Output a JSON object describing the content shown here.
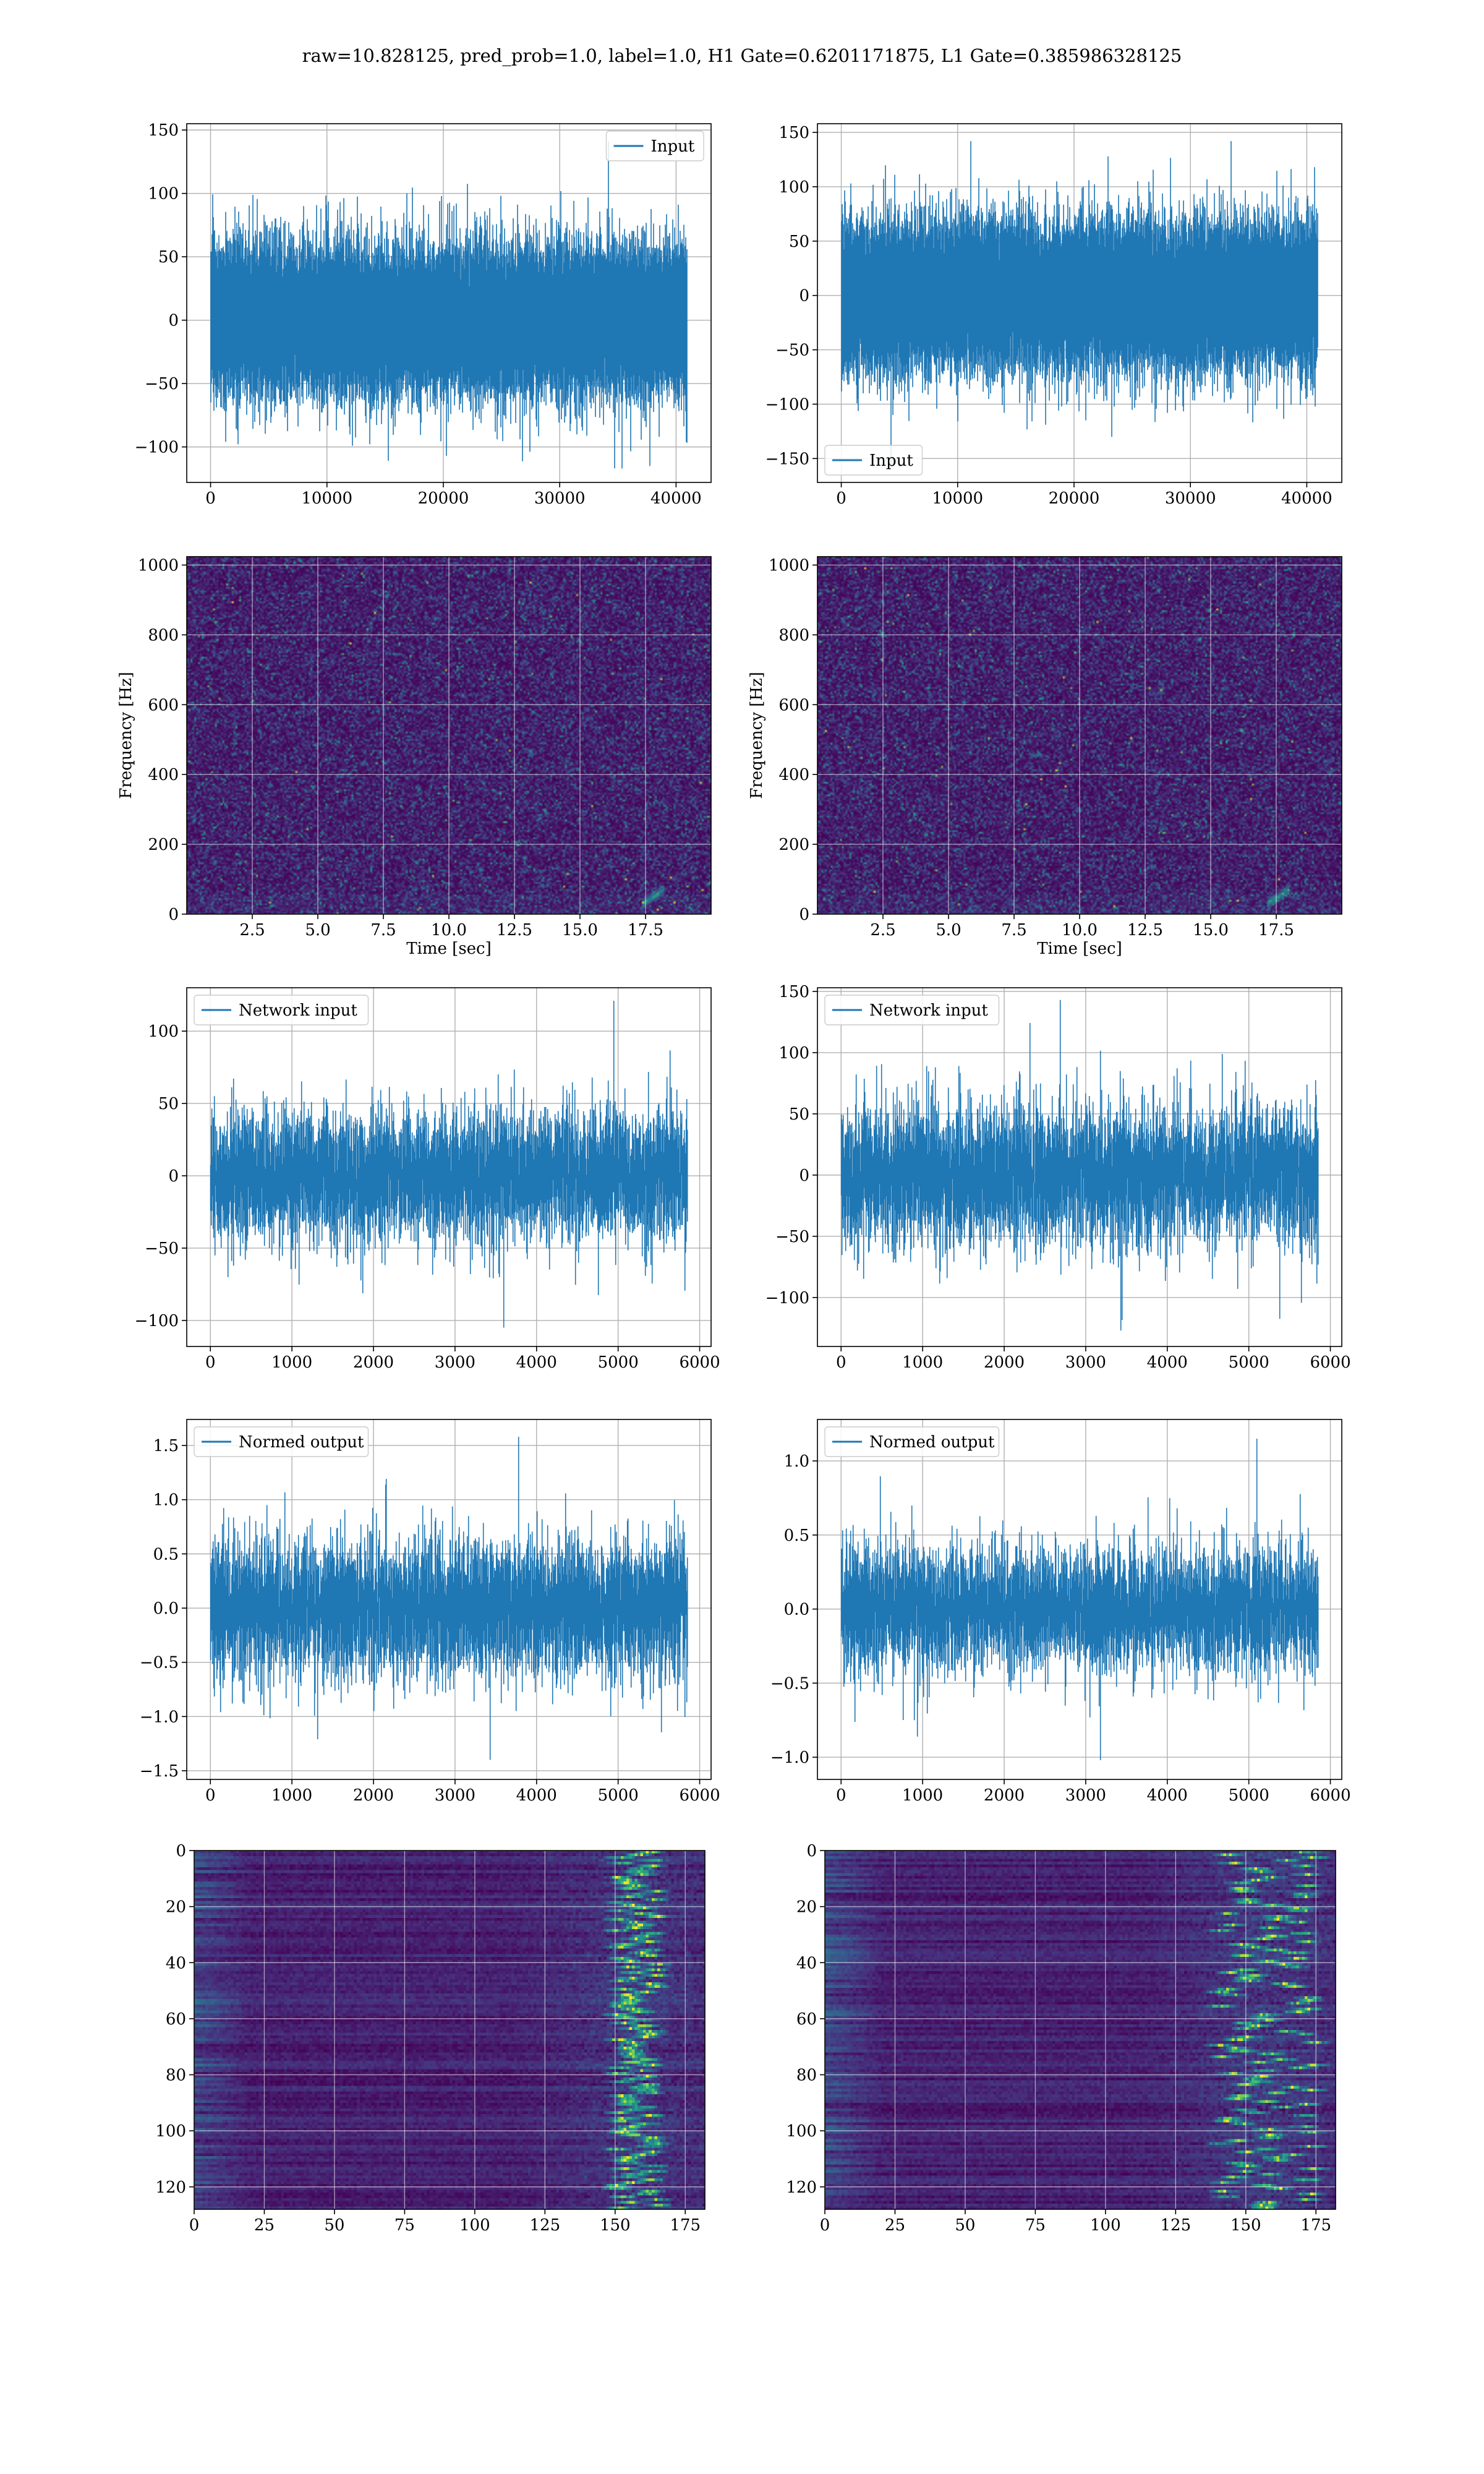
{
  "figure": {
    "suptitle": "raw=10.828125, pred_prob=1.0, label=1.0, H1 Gate=0.6201171875, L1 Gate=0.385986328125"
  },
  "colors": {
    "line": "#1f77b4",
    "grid": "#b0b0b0",
    "viridis": [
      "#440154",
      "#472c7a",
      "#3b528b",
      "#2c728e",
      "#21918c",
      "#28ae80",
      "#5ec962",
      "#addc30",
      "#fde725"
    ]
  },
  "chart_data": [
    {
      "id": "h1-input",
      "type": "line",
      "series": [
        {
          "name": "Input",
          "n_samples": 40960,
          "amplitude_std": 26,
          "peak_max": 141,
          "peak_min": -117
        }
      ],
      "xlim": [
        -2048,
        43008
      ],
      "ylim": [
        -128,
        155
      ],
      "xticks": [
        0,
        10000,
        20000,
        30000,
        40000
      ],
      "xticklabels": [
        "0",
        "10000",
        "20000",
        "30000",
        "40000"
      ],
      "yticks": [
        -100,
        -50,
        0,
        50,
        100,
        150
      ],
      "yticklabels": [
        "−100",
        "−50",
        "0",
        "50",
        "100",
        "150"
      ],
      "legend": "upper right",
      "grid": true,
      "xlabel": "",
      "ylabel": ""
    },
    {
      "id": "l1-input",
      "type": "line",
      "series": [
        {
          "name": "Input",
          "n_samples": 40960,
          "amplitude_std": 30,
          "peak_max": 142,
          "peak_min": -158
        }
      ],
      "xlim": [
        -2048,
        43008
      ],
      "ylim": [
        -172,
        158
      ],
      "xticks": [
        0,
        10000,
        20000,
        30000,
        40000
      ],
      "xticklabels": [
        "0",
        "10000",
        "20000",
        "30000",
        "40000"
      ],
      "yticks": [
        -150,
        -100,
        -50,
        0,
        50,
        100,
        150
      ],
      "yticklabels": [
        "−150",
        "−100",
        "−50",
        "0",
        "50",
        "100",
        "150"
      ],
      "legend": "lower left",
      "grid": true,
      "xlabel": "",
      "ylabel": ""
    },
    {
      "id": "h1-spectrogram",
      "type": "heatmap",
      "xlim": [
        0,
        20
      ],
      "ylim": [
        0,
        1024
      ],
      "xticks": [
        2.5,
        5.0,
        7.5,
        10.0,
        12.5,
        15.0,
        17.5
      ],
      "xticklabels": [
        "2.5",
        "5.0",
        "7.5",
        "10.0",
        "12.5",
        "15.0",
        "17.5"
      ],
      "yticks": [
        0,
        200,
        400,
        600,
        800,
        1000
      ],
      "yticklabels": [
        "0",
        "200",
        "400",
        "600",
        "800",
        "1000"
      ],
      "xlabel": "Time [sec]",
      "ylabel": "Frequency [Hz]",
      "colormap": "viridis",
      "grid": true,
      "chirp": {
        "t_end": 18.1,
        "f_range": [
          30,
          70
        ]
      }
    },
    {
      "id": "l1-spectrogram",
      "type": "heatmap",
      "xlim": [
        0,
        20
      ],
      "ylim": [
        0,
        1024
      ],
      "xticks": [
        2.5,
        5.0,
        7.5,
        10.0,
        12.5,
        15.0,
        17.5
      ],
      "xticklabels": [
        "2.5",
        "5.0",
        "7.5",
        "10.0",
        "12.5",
        "15.0",
        "17.5"
      ],
      "yticks": [
        0,
        200,
        400,
        600,
        800,
        1000
      ],
      "yticklabels": [
        "0",
        "200",
        "400",
        "600",
        "800",
        "1000"
      ],
      "xlabel": "Time [sec]",
      "ylabel": "Frequency [Hz]",
      "colormap": "viridis",
      "grid": true,
      "chirp": {
        "t_end": 17.9,
        "f_range": [
          30,
          70
        ]
      }
    },
    {
      "id": "h1-network-input",
      "type": "line",
      "series": [
        {
          "name": "Network input",
          "n_samples": 5850,
          "amplitude_std": 22,
          "peak_max": 121,
          "peak_min": -105
        }
      ],
      "xlim": [
        -290,
        6140
      ],
      "ylim": [
        -118,
        130
      ],
      "xticks": [
        0,
        1000,
        2000,
        3000,
        4000,
        5000,
        6000
      ],
      "xticklabels": [
        "0",
        "1000",
        "2000",
        "3000",
        "4000",
        "5000",
        "6000"
      ],
      "yticks": [
        -100,
        -50,
        0,
        50,
        100
      ],
      "yticklabels": [
        "−100",
        "−50",
        "0",
        "50",
        "100"
      ],
      "legend": "upper left",
      "grid": true,
      "xlabel": "",
      "ylabel": ""
    },
    {
      "id": "l1-network-input",
      "type": "line",
      "series": [
        {
          "name": "Network input",
          "n_samples": 5850,
          "amplitude_std": 27,
          "peak_max": 143,
          "peak_min": -127
        }
      ],
      "xlim": [
        -290,
        6140
      ],
      "ylim": [
        -140,
        153
      ],
      "xticks": [
        0,
        1000,
        2000,
        3000,
        4000,
        5000,
        6000
      ],
      "xticklabels": [
        "0",
        "1000",
        "2000",
        "3000",
        "4000",
        "5000",
        "6000"
      ],
      "yticks": [
        -100,
        -50,
        0,
        50,
        100,
        150
      ],
      "yticklabels": [
        "−100",
        "−50",
        "0",
        "50",
        "100",
        "150"
      ],
      "legend": "upper left",
      "grid": true,
      "xlabel": "",
      "ylabel": ""
    },
    {
      "id": "h1-normed-output",
      "type": "line",
      "series": [
        {
          "name": "Normed output",
          "n_samples": 5850,
          "amplitude_std": 0.31,
          "peak_max": 1.58,
          "peak_min": -1.4
        }
      ],
      "xlim": [
        -290,
        6140
      ],
      "ylim": [
        -1.58,
        1.74
      ],
      "xticks": [
        0,
        1000,
        2000,
        3000,
        4000,
        5000,
        6000
      ],
      "xticklabels": [
        "0",
        "1000",
        "2000",
        "3000",
        "4000",
        "5000",
        "6000"
      ],
      "yticks": [
        -1.5,
        -1.0,
        -0.5,
        0.0,
        0.5,
        1.0,
        1.5
      ],
      "yticklabels": [
        "−1.5",
        "−1.0",
        "−0.5",
        "0.0",
        "0.5",
        "1.0",
        "1.5"
      ],
      "legend": "upper left",
      "grid": true,
      "xlabel": "",
      "ylabel": ""
    },
    {
      "id": "l1-normed-output",
      "type": "line",
      "series": [
        {
          "name": "Normed output",
          "n_samples": 5850,
          "amplitude_std": 0.2,
          "peak_max": 1.15,
          "peak_min": -1.02
        }
      ],
      "xlim": [
        -290,
        6140
      ],
      "ylim": [
        -1.15,
        1.28
      ],
      "xticks": [
        0,
        1000,
        2000,
        3000,
        4000,
        5000,
        6000
      ],
      "xticklabels": [
        "0",
        "1000",
        "2000",
        "3000",
        "4000",
        "5000",
        "6000"
      ],
      "yticks": [
        -1.0,
        -0.5,
        0.0,
        0.5,
        1.0
      ],
      "yticklabels": [
        "−1.0",
        "−0.5",
        "0.0",
        "0.5",
        "1.0"
      ],
      "legend": "upper left",
      "grid": true,
      "xlabel": "",
      "ylabel": ""
    },
    {
      "id": "h1-features",
      "type": "heatmap",
      "n_rows": 128,
      "n_cols": 182,
      "xlim": [
        0,
        182
      ],
      "ylim": [
        128,
        0
      ],
      "xticks": [
        0,
        25,
        50,
        75,
        100,
        125,
        150,
        175
      ],
      "xticklabels": [
        "0",
        "25",
        "50",
        "75",
        "100",
        "125",
        "150",
        "175"
      ],
      "yticks": [
        0,
        20,
        40,
        60,
        80,
        100,
        120
      ],
      "yticklabels": [
        "0",
        "20",
        "40",
        "60",
        "80",
        "100",
        "120"
      ],
      "colormap": "viridis",
      "grid": true,
      "xlabel": "",
      "ylabel": "",
      "hotspot_cols": [
        150,
        165
      ]
    },
    {
      "id": "l1-features",
      "type": "heatmap",
      "n_rows": 128,
      "n_cols": 182,
      "xlim": [
        0,
        182
      ],
      "ylim": [
        128,
        0
      ],
      "xticks": [
        0,
        25,
        50,
        75,
        100,
        125,
        150,
        175
      ],
      "xticklabels": [
        "0",
        "25",
        "50",
        "75",
        "100",
        "125",
        "150",
        "175"
      ],
      "yticks": [
        0,
        20,
        40,
        60,
        80,
        100,
        120
      ],
      "yticklabels": [
        "0",
        "20",
        "40",
        "60",
        "80",
        "100",
        "120"
      ],
      "colormap": "viridis",
      "grid": true,
      "xlabel": "",
      "ylabel": "",
      "hotspot_cols": [
        140,
        175
      ]
    }
  ]
}
